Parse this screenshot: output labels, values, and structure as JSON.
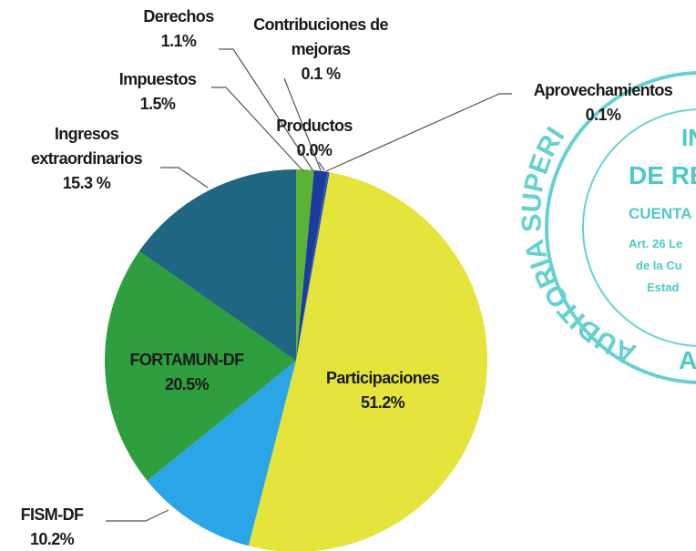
{
  "chart_data": {
    "type": "pie",
    "categories": [
      "Impuestos",
      "Derechos",
      "Contribuciones de mejoras",
      "Productos",
      "Aprovechamientos",
      "Participaciones",
      "FISM-DF",
      "FORTAMUN-DF",
      "Ingresos extraordinarios"
    ],
    "values": [
      1.5,
      1.1,
      0.1,
      0.0,
      0.1,
      51.2,
      10.2,
      20.5,
      15.3
    ],
    "value_labels": [
      "1.5%",
      "1.1%",
      "0.1 %",
      "0.0%",
      "0.1%",
      "51.2%",
      "10.2%",
      "20.5%",
      "15.3 %"
    ],
    "colors": [
      "#5cb236",
      "#1c3c9c",
      "#2a4fb0",
      "#3a66c0",
      "#244ca8",
      "#e4e43c",
      "#2aa6e6",
      "#2e9e3e",
      "#1e6682"
    ]
  },
  "stamp": {
    "arc": "AUDITORIA SUPERI",
    "lines": [
      "IN",
      "DE RE",
      "CUENTA",
      "Art. 26 Le",
      "de la Cu",
      "Estad"
    ],
    "bottom": "A"
  }
}
